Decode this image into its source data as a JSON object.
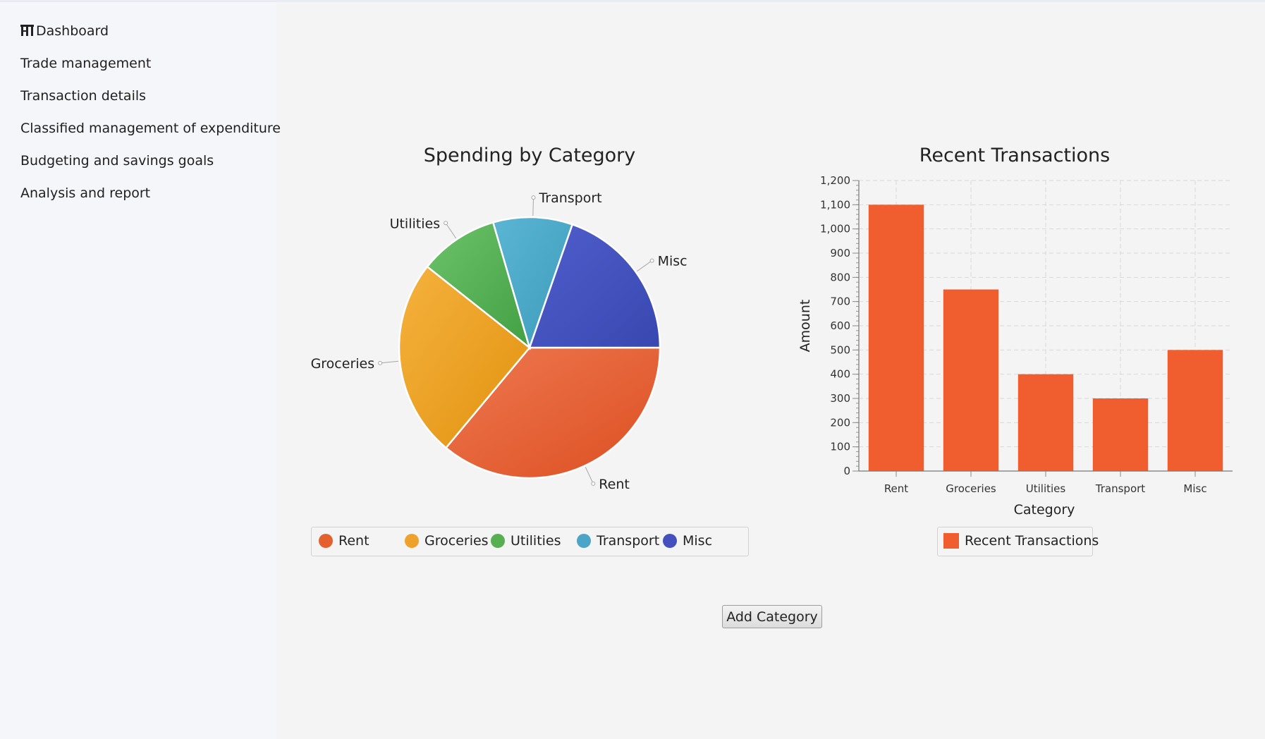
{
  "sidebar": {
    "items": [
      {
        "label": "Dashboard",
        "icon": "dashboard-icon"
      },
      {
        "label": "Trade management"
      },
      {
        "label": "Transaction details"
      },
      {
        "label": "Classified management of expenditure"
      },
      {
        "label": "Budgeting and savings goals"
      },
      {
        "label": "Analysis and report"
      }
    ]
  },
  "pie_chart": {
    "title": "Spending by Category",
    "legend": [
      "Rent",
      "Groceries",
      "Utilities",
      "Transport",
      "Misc"
    ]
  },
  "bar_chart": {
    "title": "Recent Transactions",
    "xlabel": "Category",
    "ylabel": "Amount",
    "y_ticks": [
      "0",
      "100",
      "200",
      "300",
      "400",
      "500",
      "600",
      "700",
      "800",
      "900",
      "1,000",
      "1,100",
      "1,200"
    ],
    "legend": "Recent Transactions"
  },
  "actions": {
    "add_category_label": "Add Category"
  },
  "colors": {
    "rent": "#e4612f",
    "groceries": "#eea22c",
    "utilities": "#57af52",
    "transport": "#4aa5c6",
    "misc": "#4350bd",
    "bar": "#f05d2e"
  },
  "chart_data": [
    {
      "type": "pie",
      "title": "Spending by Category",
      "categories": [
        "Rent",
        "Groceries",
        "Utilities",
        "Transport",
        "Misc"
      ],
      "values": [
        1100,
        750,
        300,
        300,
        600
      ],
      "legend_position": "bottom"
    },
    {
      "type": "bar",
      "title": "Recent Transactions",
      "categories": [
        "Rent",
        "Groceries",
        "Utilities",
        "Transport",
        "Misc"
      ],
      "series": [
        {
          "name": "Recent Transactions",
          "values": [
            1100,
            750,
            400,
            300,
            500
          ]
        }
      ],
      "xlabel": "Category",
      "ylabel": "Amount",
      "ylim": [
        0,
        1200
      ],
      "grid": true,
      "legend_position": "bottom"
    }
  ]
}
